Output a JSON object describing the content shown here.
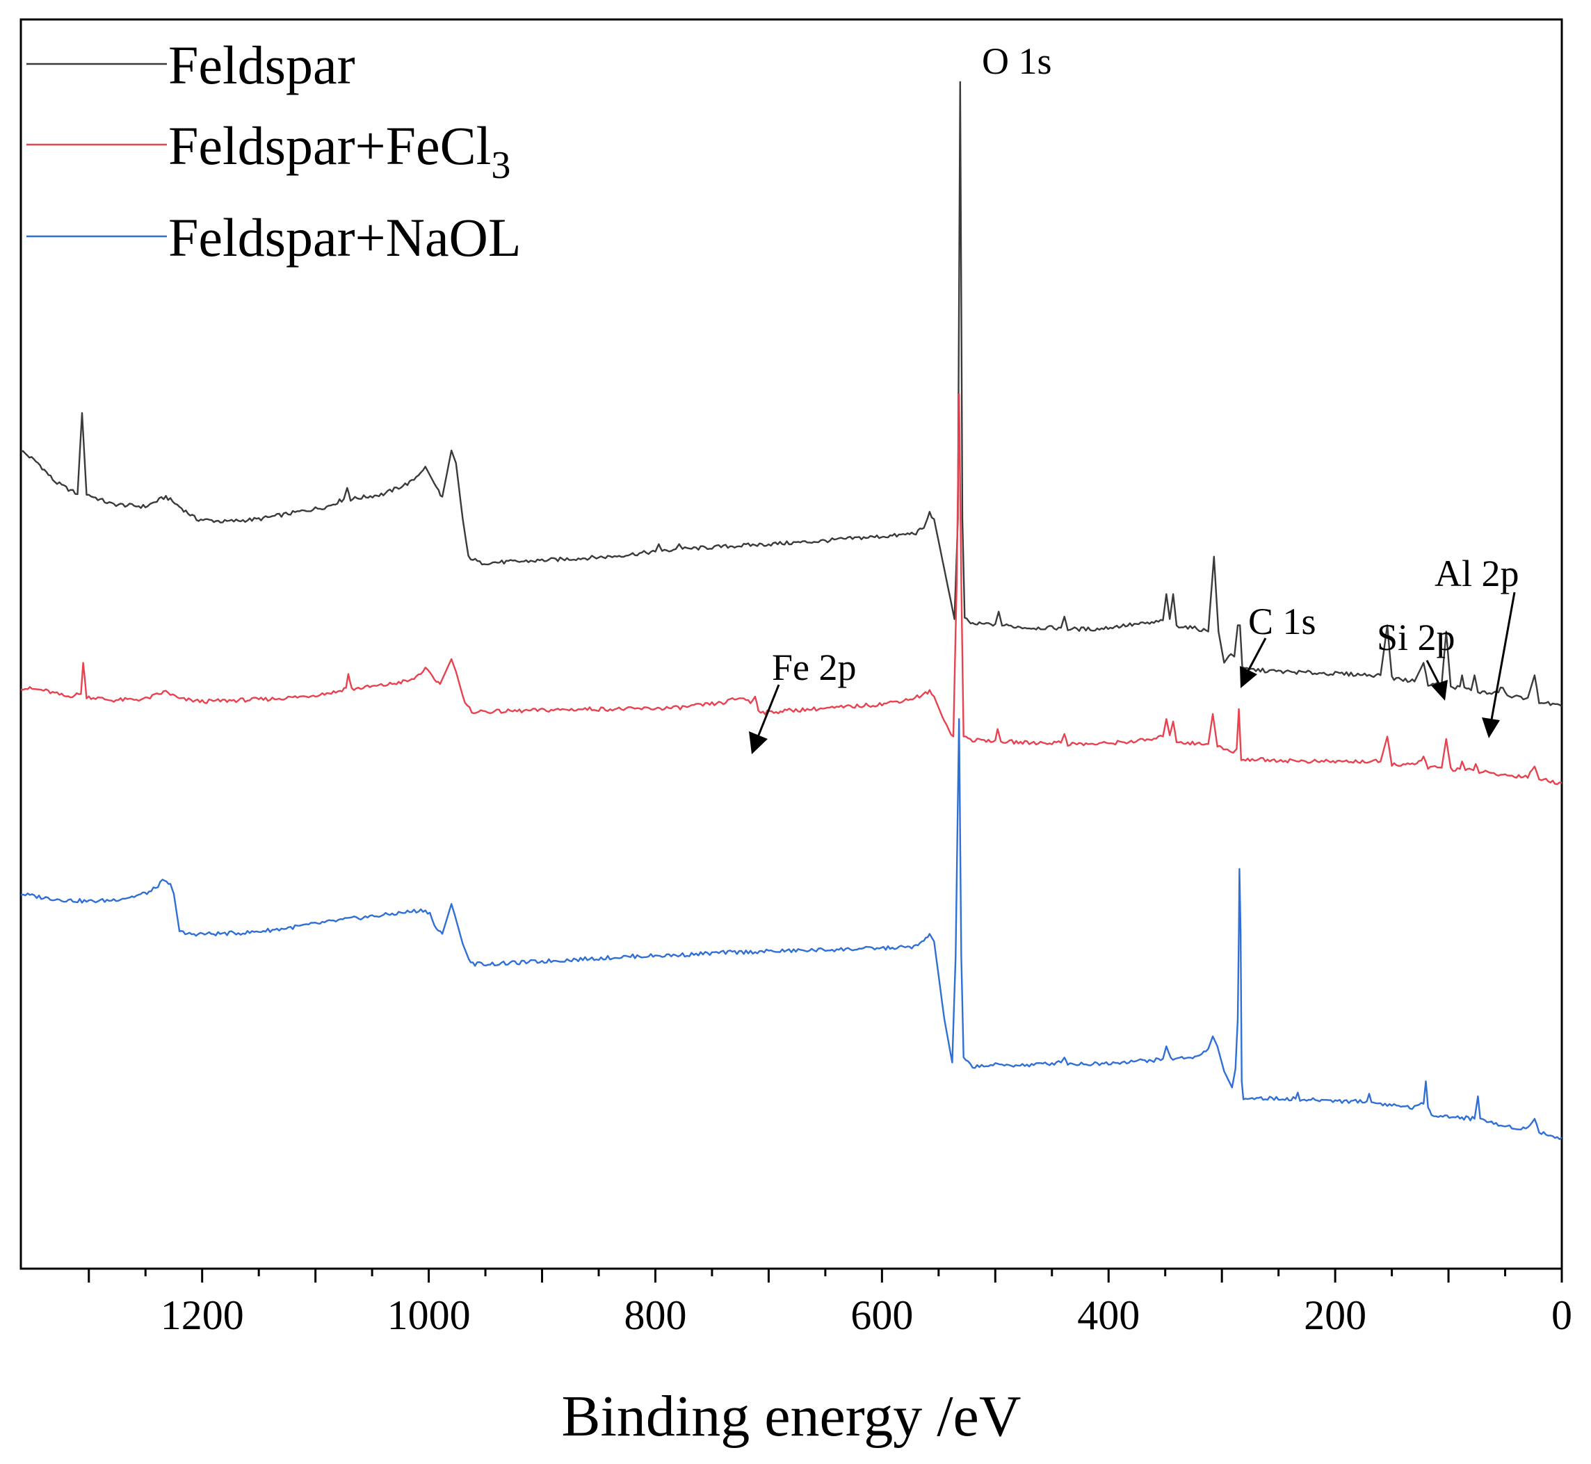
{
  "chart_data": {
    "type": "line",
    "title": "",
    "xlabel": "Binding energy /eV",
    "ylabel": "",
    "xlim": [
      1360,
      0
    ],
    "x_reversed": true,
    "ylim": [
      0,
      100
    ],
    "y_ticks_shown": false,
    "grid": false,
    "legend": "top-left",
    "x_ticks": [
      1200,
      1000,
      800,
      600,
      400,
      200,
      0
    ],
    "x_tick_labels": [
      "1200",
      "1000",
      "800",
      "600",
      "400",
      "200",
      "0"
    ],
    "legend_entries": [
      {
        "name": "Feldspar",
        "sub": "",
        "color": "#3a3a3a"
      },
      {
        "name": "Feldspar+FeCl",
        "sub": "3",
        "color": "#e8414f"
      },
      {
        "name": "Feldspar+NaOL",
        "sub": "",
        "color": "#2f6fd6"
      }
    ],
    "annotations": [
      {
        "label": "O 1s",
        "x": 531,
        "series": 0,
        "arrow": false
      },
      {
        "label": "Fe 2p",
        "x": 711,
        "series": 1,
        "arrow": true
      },
      {
        "label": "C 1s",
        "x": 284.8,
        "series": 0,
        "arrow": true
      },
      {
        "label": "Si 2p",
        "x": 102,
        "series": 0,
        "arrow": true
      },
      {
        "label": "Al 2p",
        "x": 74,
        "series": 0,
        "arrow": true
      }
    ],
    "series": [
      {
        "name": "Feldspar",
        "color": "#3a3a3a",
        "points": [
          [
            1360,
            65.5
          ],
          [
            1345,
            64.5
          ],
          [
            1330,
            63.0
          ],
          [
            1310,
            62.0
          ],
          [
            1306,
            68.5
          ],
          [
            1302,
            62.0
          ],
          [
            1280,
            61.2
          ],
          [
            1250,
            61.0
          ],
          [
            1232,
            61.8
          ],
          [
            1220,
            61.0
          ],
          [
            1205,
            60.0
          ],
          [
            1180,
            59.8
          ],
          [
            1150,
            60.0
          ],
          [
            1120,
            60.5
          ],
          [
            1090,
            61.0
          ],
          [
            1075,
            61.6
          ],
          [
            1072,
            62.5
          ],
          [
            1069,
            61.6
          ],
          [
            1040,
            62.0
          ],
          [
            1015,
            63.0
          ],
          [
            1003,
            64.2
          ],
          [
            993,
            62.5
          ],
          [
            988,
            61.8
          ],
          [
            980,
            65.5
          ],
          [
            976,
            64.5
          ],
          [
            970,
            60.0
          ],
          [
            965,
            57.0
          ],
          [
            955,
            56.5
          ],
          [
            920,
            56.6
          ],
          [
            880,
            56.8
          ],
          [
            840,
            57.0
          ],
          [
            800,
            57.4
          ],
          [
            797,
            58.0
          ],
          [
            794,
            57.4
          ],
          [
            782,
            57.6
          ],
          [
            779,
            58.0
          ],
          [
            776,
            57.6
          ],
          [
            740,
            57.8
          ],
          [
            700,
            58.0
          ],
          [
            660,
            58.2
          ],
          [
            620,
            58.5
          ],
          [
            585,
            58.7
          ],
          [
            570,
            58.9
          ],
          [
            563,
            59.3
          ],
          [
            558,
            60.5
          ],
          [
            554,
            60.0
          ],
          [
            545,
            56.0
          ],
          [
            536,
            52.0
          ],
          [
            533,
            60.0
          ],
          [
            531,
            95.0
          ],
          [
            529,
            60.0
          ],
          [
            527,
            52.0
          ],
          [
            520,
            51.6
          ],
          [
            500,
            51.6
          ],
          [
            497,
            52.6
          ],
          [
            494,
            51.5
          ],
          [
            470,
            51.3
          ],
          [
            442,
            51.3
          ],
          [
            439,
            52.2
          ],
          [
            436,
            51.2
          ],
          [
            410,
            51.2
          ],
          [
            385,
            51.5
          ],
          [
            360,
            51.7
          ],
          [
            352,
            51.9
          ],
          [
            349,
            54.0
          ],
          [
            346,
            52.0
          ],
          [
            343,
            54.0
          ],
          [
            340,
            51.5
          ],
          [
            320,
            51.2
          ],
          [
            312,
            51.0
          ],
          [
            307,
            57.0
          ],
          [
            303,
            51.0
          ],
          [
            298,
            48.5
          ],
          [
            292,
            49.2
          ],
          [
            289,
            49.0
          ],
          [
            286,
            51.5
          ],
          [
            284,
            51.5
          ],
          [
            282,
            48.0
          ],
          [
            250,
            47.8
          ],
          [
            220,
            47.7
          ],
          [
            190,
            47.6
          ],
          [
            160,
            47.5
          ],
          [
            154,
            51.5
          ],
          [
            150,
            47.3
          ],
          [
            130,
            47.0
          ],
          [
            122,
            48.5
          ],
          [
            118,
            46.8
          ],
          [
            106,
            46.8
          ],
          [
            102,
            51.0
          ],
          [
            98,
            46.5
          ],
          [
            90,
            46.6
          ],
          [
            88,
            47.5
          ],
          [
            86,
            46.5
          ],
          [
            80,
            46.3
          ],
          [
            77,
            47.5
          ],
          [
            74,
            46.2
          ],
          [
            60,
            46.0
          ],
          [
            52,
            46.5
          ],
          [
            48,
            45.8
          ],
          [
            30,
            45.7
          ],
          [
            24,
            47.5
          ],
          [
            20,
            45.4
          ],
          [
            10,
            45.2
          ],
          [
            0,
            45.0
          ]
        ]
      },
      {
        "name": "Feldspar+FeCl3",
        "color": "#e8414f",
        "points": [
          [
            1360,
            46.5
          ],
          [
            1340,
            46.3
          ],
          [
            1320,
            45.8
          ],
          [
            1307,
            46.0
          ],
          [
            1305,
            48.5
          ],
          [
            1302,
            45.8
          ],
          [
            1280,
            45.5
          ],
          [
            1250,
            45.6
          ],
          [
            1232,
            46.2
          ],
          [
            1220,
            45.6
          ],
          [
            1200,
            45.4
          ],
          [
            1170,
            45.5
          ],
          [
            1140,
            45.6
          ],
          [
            1110,
            45.8
          ],
          [
            1080,
            46.2
          ],
          [
            1073,
            46.5
          ],
          [
            1071,
            47.6
          ],
          [
            1068,
            46.4
          ],
          [
            1040,
            46.7
          ],
          [
            1015,
            47.1
          ],
          [
            1003,
            48.0
          ],
          [
            995,
            47.2
          ],
          [
            990,
            46.8
          ],
          [
            980,
            48.8
          ],
          [
            976,
            47.8
          ],
          [
            968,
            45.2
          ],
          [
            962,
            44.6
          ],
          [
            940,
            44.6
          ],
          [
            900,
            44.7
          ],
          [
            860,
            44.8
          ],
          [
            820,
            44.8
          ],
          [
            780,
            44.9
          ],
          [
            740,
            45.3
          ],
          [
            730,
            45.6
          ],
          [
            722,
            45.7
          ],
          [
            716,
            45.3
          ],
          [
            712,
            45.8
          ],
          [
            709,
            44.8
          ],
          [
            705,
            44.5
          ],
          [
            680,
            44.7
          ],
          [
            640,
            44.9
          ],
          [
            600,
            45.2
          ],
          [
            575,
            45.6
          ],
          [
            565,
            45.9
          ],
          [
            558,
            46.2
          ],
          [
            554,
            45.8
          ],
          [
            545,
            43.8
          ],
          [
            537,
            42.6
          ],
          [
            534,
            55.0
          ],
          [
            532,
            70.0
          ],
          [
            530,
            55.0
          ],
          [
            528,
            42.6
          ],
          [
            520,
            42.3
          ],
          [
            500,
            42.3
          ],
          [
            498,
            43.2
          ],
          [
            495,
            42.2
          ],
          [
            470,
            42.1
          ],
          [
            442,
            42.1
          ],
          [
            439,
            42.8
          ],
          [
            436,
            42.0
          ],
          [
            410,
            42.0
          ],
          [
            380,
            42.2
          ],
          [
            358,
            42.4
          ],
          [
            352,
            42.6
          ],
          [
            349,
            44.0
          ],
          [
            346,
            42.7
          ],
          [
            343,
            43.8
          ],
          [
            340,
            42.2
          ],
          [
            320,
            42.0
          ],
          [
            312,
            42.0
          ],
          [
            308,
            44.4
          ],
          [
            304,
            41.8
          ],
          [
            295,
            41.5
          ],
          [
            290,
            41.3
          ],
          [
            287,
            41.6
          ],
          [
            285,
            44.8
          ],
          [
            283,
            40.8
          ],
          [
            250,
            40.7
          ],
          [
            220,
            40.6
          ],
          [
            190,
            40.6
          ],
          [
            160,
            40.6
          ],
          [
            154,
            42.6
          ],
          [
            150,
            40.4
          ],
          [
            130,
            40.3
          ],
          [
            122,
            41.0
          ],
          [
            118,
            40.1
          ],
          [
            106,
            40.1
          ],
          [
            102,
            42.4
          ],
          [
            98,
            40.0
          ],
          [
            90,
            40.0
          ],
          [
            88,
            40.6
          ],
          [
            85,
            39.9
          ],
          [
            78,
            39.9
          ],
          [
            76,
            40.4
          ],
          [
            73,
            39.8
          ],
          [
            60,
            39.6
          ],
          [
            50,
            39.5
          ],
          [
            30,
            39.4
          ],
          [
            24,
            40.2
          ],
          [
            20,
            39.2
          ],
          [
            10,
            39.0
          ],
          [
            0,
            38.9
          ]
        ]
      },
      {
        "name": "Feldspar+NaOL",
        "color": "#2f6fd6",
        "points": [
          [
            1360,
            30.0
          ],
          [
            1340,
            29.7
          ],
          [
            1320,
            29.5
          ],
          [
            1300,
            29.4
          ],
          [
            1280,
            29.5
          ],
          [
            1260,
            29.8
          ],
          [
            1245,
            30.2
          ],
          [
            1235,
            31.0
          ],
          [
            1228,
            30.8
          ],
          [
            1225,
            30.0
          ],
          [
            1220,
            27.0
          ],
          [
            1215,
            26.8
          ],
          [
            1190,
            26.8
          ],
          [
            1160,
            26.9
          ],
          [
            1130,
            27.2
          ],
          [
            1100,
            27.6
          ],
          [
            1070,
            28.0
          ],
          [
            1040,
            28.3
          ],
          [
            1015,
            28.6
          ],
          [
            1005,
            28.7
          ],
          [
            999,
            28.5
          ],
          [
            995,
            27.4
          ],
          [
            988,
            26.8
          ],
          [
            980,
            29.2
          ],
          [
            977,
            28.3
          ],
          [
            970,
            26.0
          ],
          [
            963,
            24.4
          ],
          [
            940,
            24.4
          ],
          [
            900,
            24.6
          ],
          [
            860,
            24.8
          ],
          [
            820,
            25.0
          ],
          [
            780,
            25.1
          ],
          [
            740,
            25.3
          ],
          [
            700,
            25.4
          ],
          [
            660,
            25.5
          ],
          [
            620,
            25.6
          ],
          [
            585,
            25.7
          ],
          [
            570,
            25.8
          ],
          [
            563,
            26.2
          ],
          [
            558,
            26.8
          ],
          [
            554,
            26.2
          ],
          [
            545,
            20.0
          ],
          [
            538,
            16.5
          ],
          [
            535,
            25.0
          ],
          [
            532,
            44.0
          ],
          [
            530,
            25.0
          ],
          [
            528,
            16.8
          ],
          [
            520,
            16.2
          ],
          [
            500,
            16.3
          ],
          [
            470,
            16.3
          ],
          [
            442,
            16.5
          ],
          [
            439,
            16.9
          ],
          [
            436,
            16.4
          ],
          [
            410,
            16.4
          ],
          [
            380,
            16.6
          ],
          [
            358,
            16.7
          ],
          [
            352,
            16.8
          ],
          [
            349,
            17.8
          ],
          [
            345,
            16.8
          ],
          [
            320,
            17.0
          ],
          [
            312,
            17.6
          ],
          [
            308,
            18.6
          ],
          [
            304,
            17.8
          ],
          [
            298,
            15.8
          ],
          [
            291,
            14.5
          ],
          [
            288,
            16.0
          ],
          [
            286,
            20.0
          ],
          [
            285,
            27.0
          ],
          [
            284.5,
            32.0
          ],
          [
            283.5,
            27.0
          ],
          [
            282.5,
            15.0
          ],
          [
            281,
            13.7
          ],
          [
            250,
            13.6
          ],
          [
            235,
            13.6
          ],
          [
            233,
            14.1
          ],
          [
            231,
            13.5
          ],
          [
            210,
            13.5
          ],
          [
            190,
            13.4
          ],
          [
            172,
            13.4
          ],
          [
            170,
            14.0
          ],
          [
            168,
            13.3
          ],
          [
            150,
            13.1
          ],
          [
            130,
            12.9
          ],
          [
            122,
            13.2
          ],
          [
            120,
            15.0
          ],
          [
            118,
            12.9
          ],
          [
            115,
            12.4
          ],
          [
            105,
            12.2
          ],
          [
            90,
            12.1
          ],
          [
            77,
            12.0
          ],
          [
            74,
            13.8
          ],
          [
            72,
            12.0
          ],
          [
            60,
            11.6
          ],
          [
            50,
            11.4
          ],
          [
            30,
            11.2
          ],
          [
            24,
            12.0
          ],
          [
            20,
            11.0
          ],
          [
            10,
            10.6
          ],
          [
            0,
            10.5
          ]
        ]
      }
    ]
  }
}
